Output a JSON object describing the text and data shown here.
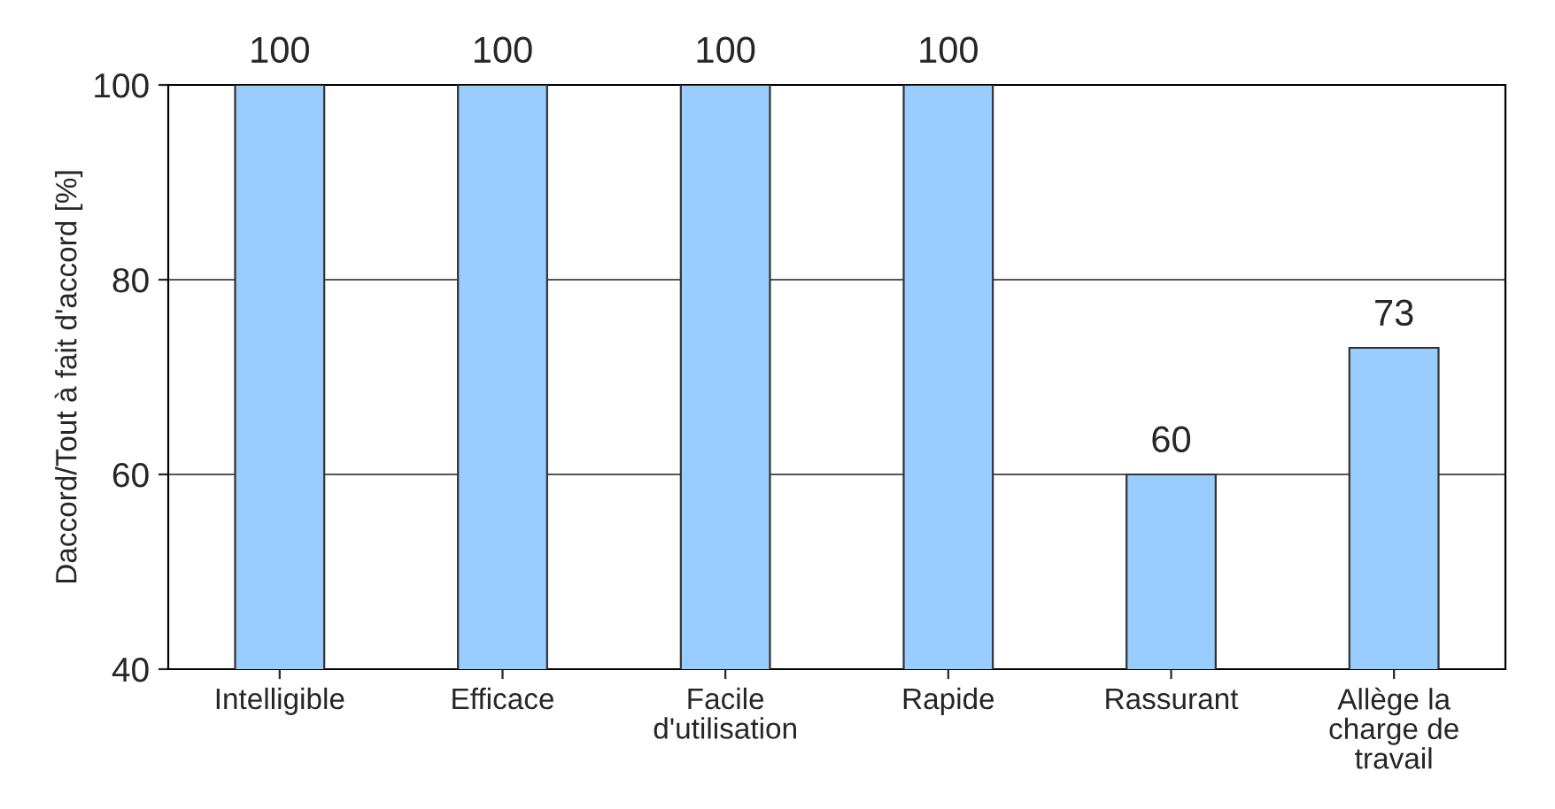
{
  "chart_data": {
    "type": "bar",
    "ylabel": "Daccord/Tout à fait d'accord [%]",
    "categories": [
      "Intelligible",
      "Efficace",
      "Facile\nd'utilisation",
      "Rapide",
      "Rassurant",
      "Allège la\ncharge de\ntravail"
    ],
    "values": [
      100,
      100,
      100,
      100,
      60,
      73
    ],
    "color": "#99ccff",
    "ylim": [
      40,
      100
    ],
    "yticks": [
      40,
      60,
      80,
      100
    ],
    "grid": "y",
    "data_labels": true
  }
}
